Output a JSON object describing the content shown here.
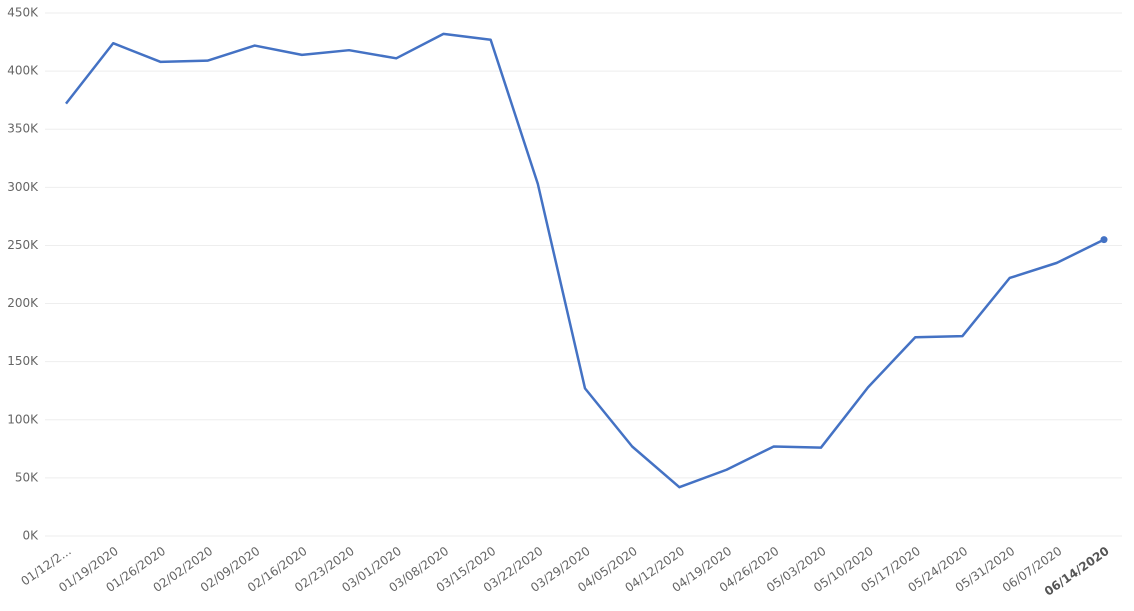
{
  "chart_data": {
    "type": "line",
    "categories": [
      "01/12/2...",
      "01/19/2020",
      "01/26/2020",
      "02/02/2020",
      "02/09/2020",
      "02/16/2020",
      "02/23/2020",
      "03/01/2020",
      "03/08/2020",
      "03/15/2020",
      "03/22/2020",
      "03/29/2020",
      "04/05/2020",
      "04/12/2020",
      "04/19/2020",
      "04/26/2020",
      "05/03/2020",
      "05/10/2020",
      "05/17/2020",
      "05/24/2020",
      "05/31/2020",
      "06/07/2020",
      "06/14/2020"
    ],
    "values": [
      372000,
      424000,
      408000,
      409000,
      422000,
      414000,
      418000,
      411000,
      432000,
      427000,
      303000,
      127000,
      77000,
      42000,
      57000,
      77000,
      76000,
      128000,
      171000,
      172000,
      222000,
      235000,
      255000
    ],
    "color": "#4472c4",
    "ylim": [
      0,
      450000
    ],
    "yticks": [
      {
        "value": 0,
        "label": "0K"
      },
      {
        "value": 50000,
        "label": "50K"
      },
      {
        "value": 100000,
        "label": "100K"
      },
      {
        "value": 150000,
        "label": "150K"
      },
      {
        "value": 200000,
        "label": "200K"
      },
      {
        "value": 250000,
        "label": "250K"
      },
      {
        "value": 300000,
        "label": "300K"
      },
      {
        "value": 350000,
        "label": "350K"
      },
      {
        "value": 400000,
        "label": "400K"
      },
      {
        "value": 450000,
        "label": "450K"
      }
    ],
    "grid": true
  }
}
